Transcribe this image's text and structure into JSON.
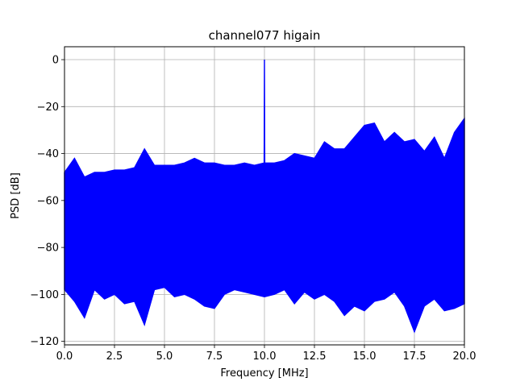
{
  "chart_data": {
    "type": "line",
    "title": "channel077 higain",
    "xlabel": "Frequency [MHz]",
    "ylabel": "PSD [dB]",
    "xlim": [
      0,
      20
    ],
    "ylim": [
      -121.5,
      5.5
    ],
    "grid": true,
    "series_color": "#0000ff",
    "x_ticks": [
      {
        "value": 0,
        "label": "0.0"
      },
      {
        "value": 2.5,
        "label": "2.5"
      },
      {
        "value": 5,
        "label": "5.0"
      },
      {
        "value": 7.5,
        "label": "7.5"
      },
      {
        "value": 10,
        "label": "10.0"
      },
      {
        "value": 12.5,
        "label": "12.5"
      },
      {
        "value": 15,
        "label": "15.0"
      },
      {
        "value": 17.5,
        "label": "17.5"
      },
      {
        "value": 20,
        "label": "20.0"
      }
    ],
    "y_ticks": [
      {
        "value": 0,
        "label": "0"
      },
      {
        "value": -20,
        "label": "−20"
      },
      {
        "value": -40,
        "label": "−40"
      },
      {
        "value": -60,
        "label": "−60"
      },
      {
        "value": -80,
        "label": "−80"
      },
      {
        "value": -100,
        "label": "−100"
      },
      {
        "value": -120,
        "label": "−120"
      }
    ],
    "series": [
      {
        "x": [
          0.0,
          0.5,
          1.0,
          1.5,
          2.0,
          2.5,
          3.0,
          3.5,
          4.0,
          4.5,
          5.0,
          5.5,
          6.0,
          6.5,
          7.0,
          7.5,
          8.0,
          8.5,
          9.0,
          9.5,
          9.98,
          10.0,
          10.02,
          10.5,
          11.0,
          11.5,
          12.0,
          12.5,
          13.0,
          13.5,
          14.0,
          14.5,
          15.0,
          15.5,
          16.0,
          16.5,
          17.0,
          17.5,
          18.0,
          18.5,
          19.0,
          19.5,
          20.0
        ],
        "upper": [
          -48,
          -42,
          -50,
          -48,
          -48,
          -47,
          -47,
          -46,
          -38,
          -45,
          -45,
          -45,
          -44,
          -42,
          -44,
          -44,
          -45,
          -45,
          -44,
          -45,
          -44,
          0,
          -44,
          -44,
          -43,
          -40,
          -41,
          -42,
          -35,
          -38,
          -38,
          -33,
          -28,
          -27,
          -35,
          -31,
          -35,
          -34,
          -39,
          -33,
          -42,
          -31,
          -25
        ],
        "lower": [
          -98,
          -103,
          -110,
          -98,
          -102,
          -100,
          -104,
          -103,
          -113,
          -98,
          -97,
          -101,
          -100,
          -102,
          -105,
          -106,
          -100,
          -98,
          -99,
          -100,
          -101,
          -101,
          -101,
          -100,
          -98,
          -104,
          -99,
          -102,
          -100,
          -103,
          -109,
          -105,
          -107,
          -103,
          -102,
          -99,
          -105,
          -116,
          -105,
          -102,
          -107,
          -106,
          -104
        ]
      }
    ]
  }
}
